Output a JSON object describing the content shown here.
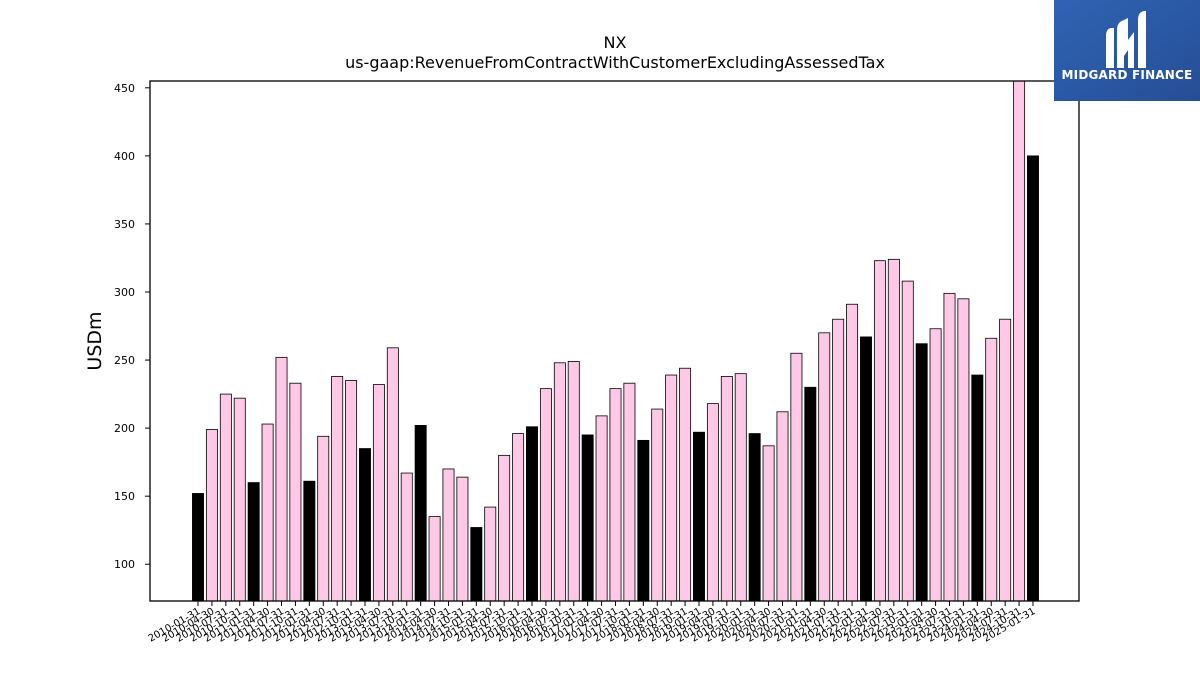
{
  "chart_data": {
    "type": "bar",
    "title": "NX",
    "subtitle": "us-gaap:RevenueFromContractWithCustomerExcludingAssessedTax",
    "ylabel": "USDm",
    "xlabel": "",
    "ylim": [
      73,
      455
    ],
    "yticks": [
      100,
      150,
      200,
      250,
      300,
      350,
      400,
      450
    ],
    "grid": false,
    "colors": {
      "annual": "#000000",
      "quarterly": "#ffc8e6",
      "edge": "#000000"
    },
    "categories": [
      "2010-01-31",
      "2010-04-30",
      "2010-07-31",
      "2010-10-31",
      "2011-01-31",
      "2011-04-30",
      "2011-07-31",
      "2011-10-31",
      "2012-01-31",
      "2012-04-30",
      "2012-07-31",
      "2012-10-31",
      "2013-01-31",
      "2013-04-30",
      "2013-07-31",
      "2013-10-31",
      "2014-01-31",
      "2014-04-30",
      "2014-07-31",
      "2014-10-31",
      "2015-01-31",
      "2015-04-30",
      "2015-07-31",
      "2015-10-31",
      "2016-01-31",
      "2016-04-30",
      "2016-07-31",
      "2016-10-31",
      "2017-01-31",
      "2017-04-30",
      "2017-07-31",
      "2017-10-31",
      "2018-01-31",
      "2018-04-30",
      "2018-07-31",
      "2018-10-31",
      "2019-01-31",
      "2019-04-30",
      "2019-07-31",
      "2019-10-31",
      "2020-01-31",
      "2020-04-30",
      "2020-07-31",
      "2020-10-31",
      "2021-01-31",
      "2021-04-30",
      "2021-07-31",
      "2021-10-31",
      "2022-01-31",
      "2022-04-30",
      "2022-07-31",
      "2022-10-31",
      "2023-01-31",
      "2023-04-30",
      "2023-07-31",
      "2023-10-31",
      "2024-01-31",
      "2024-04-30",
      "2024-07-31",
      "2024-10-31",
      "2025-01-31"
    ],
    "values": [
      152,
      199,
      225,
      222,
      160,
      203,
      252,
      233,
      161,
      194,
      238,
      235,
      185,
      232,
      259,
      167,
      202,
      135,
      170,
      164,
      127,
      142,
      180,
      196,
      201,
      229,
      248,
      249,
      195,
      209,
      229,
      233,
      191,
      214,
      239,
      244,
      197,
      218,
      238,
      240,
      196,
      187,
      212,
      255,
      230,
      270,
      280,
      291,
      267,
      323,
      324,
      308,
      262,
      273,
      299,
      295,
      239,
      266,
      280,
      455,
      400
    ],
    "annual_flags": [
      true,
      false,
      false,
      false,
      true,
      false,
      false,
      false,
      true,
      false,
      false,
      false,
      true,
      false,
      false,
      false,
      true,
      false,
      false,
      false,
      true,
      false,
      false,
      false,
      true,
      false,
      false,
      false,
      true,
      false,
      false,
      false,
      true,
      false,
      false,
      false,
      true,
      false,
      false,
      false,
      true,
      false,
      false,
      false,
      true,
      false,
      false,
      false,
      true,
      false,
      false,
      false,
      true,
      false,
      false,
      false,
      true,
      false,
      false,
      false,
      true
    ]
  },
  "logo": {
    "text": "MIDGARD FINANCE",
    "background": "#2b5aa6",
    "icon": "midgard-m-logo-icon"
  }
}
